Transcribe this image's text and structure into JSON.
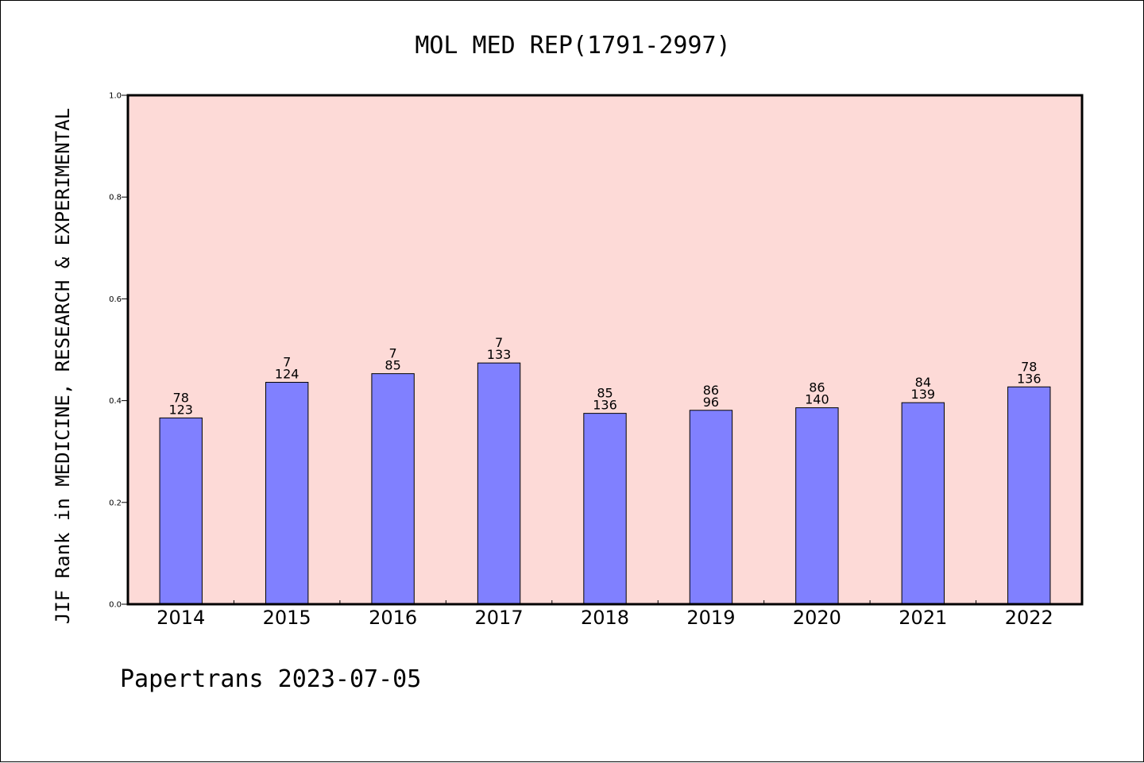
{
  "footer": "Papertrans 2023-07-05",
  "chart_data": {
    "type": "bar",
    "title": "MOL MED REP(1791-2997)",
    "xlabel": "",
    "ylabel": "JIF Rank in MEDICINE, RESEARCH & EXPERIMENTAL",
    "ylim": [
      0.0,
      1.0
    ],
    "yticks": [
      "0.0",
      "0.2",
      "0.4",
      "0.6",
      "0.8",
      "1.0"
    ],
    "grid": false,
    "categories": [
      "2014",
      "2015",
      "2016",
      "2017",
      "2018",
      "2019",
      "2020",
      "2021",
      "2022"
    ],
    "values": [
      0.366,
      0.436,
      0.453,
      0.474,
      0.375,
      0.381,
      0.386,
      0.396,
      0.427
    ],
    "bar_labels_top": [
      "78",
      "7",
      "7",
      "7",
      "85",
      "86",
      "86",
      "84",
      "78"
    ],
    "bar_labels_bottom": [
      "123",
      "124",
      "85",
      "133",
      "136",
      "96",
      "140",
      "139",
      "136"
    ],
    "colors": {
      "plot_background": "#fddad7",
      "bar_fill": "#8080ff",
      "bar_edge": "#000000"
    }
  }
}
